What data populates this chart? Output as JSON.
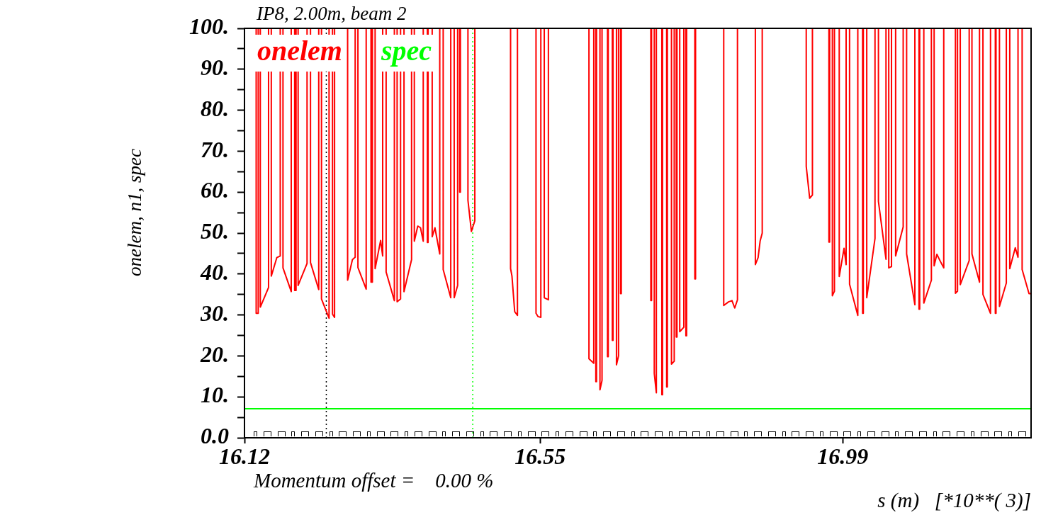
{
  "chart_data": {
    "type": "line",
    "title": "IP8, 2.00m, beam 2",
    "ylabel": "onelem, n1, spec",
    "xlabel": "s (m)   [*10**( 3)]",
    "annotations": [
      "Momentum offset =    0.00 %"
    ],
    "xlim": [
      16.12,
      17.264
    ],
    "xticks": [
      16.12,
      16.55,
      16.99
    ],
    "ylim": [
      0,
      100
    ],
    "yticks": [
      {
        "value": 0,
        "label": "0.0"
      },
      {
        "value": 5,
        "label": null
      },
      {
        "value": 10,
        "label": "10."
      },
      {
        "value": 15,
        "label": null
      },
      {
        "value": 20,
        "label": "20."
      },
      {
        "value": 25,
        "label": null
      },
      {
        "value": 30,
        "label": "30."
      },
      {
        "value": 35,
        "label": null
      },
      {
        "value": 40,
        "label": "40."
      },
      {
        "value": 45,
        "label": null
      },
      {
        "value": 50,
        "label": "50."
      },
      {
        "value": 55,
        "label": null
      },
      {
        "value": 60,
        "label": "60."
      },
      {
        "value": 65,
        "label": null
      },
      {
        "value": 70,
        "label": "70."
      },
      {
        "value": 75,
        "label": null
      },
      {
        "value": 80,
        "label": "80."
      },
      {
        "value": 85,
        "label": null
      },
      {
        "value": 90,
        "label": "90."
      },
      {
        "value": 95,
        "label": null
      },
      {
        "value": 100,
        "label": "100."
      }
    ],
    "grid": false,
    "legend": "top left",
    "marker": "none",
    "line_style": "solid",
    "ref_lines": [
      {
        "axis": "x",
        "value": 16.239,
        "color": "#000000",
        "line_style": "dotted"
      },
      {
        "axis": "x",
        "value": 16.452,
        "color": "#00ff00",
        "line_style": "dotted"
      }
    ],
    "series": [
      {
        "name": "onelem",
        "color": "#ff0000",
        "x": [
          16.137,
          16.137,
          16.14,
          16.14,
          16.143,
          16.143,
          16.155,
          16.155,
          16.159,
          16.159,
          16.167,
          16.172,
          16.172,
          16.176,
          16.176,
          16.188,
          16.188,
          16.193,
          16.193,
          16.195,
          16.195,
          16.198,
          16.198,
          16.211,
          16.211,
          16.216,
          16.216,
          16.228,
          16.228,
          16.232,
          16.232,
          16.243,
          16.243,
          16.248,
          16.248,
          16.251,
          16.251,
          16.27,
          16.27,
          16.277,
          16.281,
          16.281,
          16.285,
          16.285,
          16.297,
          16.297,
          16.304,
          16.304,
          16.306,
          16.306,
          16.31,
          16.31,
          16.318,
          16.321,
          16.321,
          16.326,
          16.326,
          16.338,
          16.338,
          16.342,
          16.342,
          16.347,
          16.347,
          16.352,
          16.352,
          16.363,
          16.363,
          16.367,
          16.367,
          16.372,
          16.376,
          16.38,
          16.38,
          16.386,
          16.386,
          16.387,
          16.387,
          16.393,
          16.393,
          16.397,
          16.404,
          16.404,
          16.409,
          16.409,
          16.42,
          16.42,
          16.425,
          16.425,
          16.43,
          16.43,
          16.433,
          16.433,
          16.434,
          16.434,
          16.445,
          16.445,
          16.45,
          16.455,
          16.455,
          16.507,
          16.507,
          16.509,
          16.513,
          16.517,
          16.517,
          16.544,
          16.544,
          16.547,
          16.551,
          16.551,
          16.556,
          16.556,
          16.562,
          16.562,
          16.621,
          16.621,
          16.628,
          16.628,
          16.631,
          16.631,
          16.632,
          16.632,
          16.637,
          16.637,
          16.64,
          16.64,
          16.648,
          16.648,
          16.649,
          16.649,
          16.655,
          16.655,
          16.656,
          16.656,
          16.661,
          16.661,
          16.664,
          16.664,
          16.667,
          16.667,
          16.668,
          16.668,
          16.711,
          16.711,
          16.712,
          16.712,
          16.716,
          16.716,
          16.719,
          16.719,
          16.727,
          16.727,
          16.728,
          16.728,
          16.734,
          16.734,
          16.735,
          16.735,
          16.741,
          16.741,
          16.745,
          16.745,
          16.748,
          16.748,
          16.749,
          16.749,
          16.753,
          16.753,
          16.759,
          16.759,
          16.762,
          16.762,
          16.763,
          16.763,
          16.775,
          16.775,
          16.776,
          16.776,
          16.817,
          16.817,
          16.824,
          16.829,
          16.833,
          16.837,
          16.837,
          16.863,
          16.863,
          16.867,
          16.87,
          16.873,
          16.873,
          16.937,
          16.937,
          16.942,
          16.946,
          16.946,
          16.97,
          16.97,
          16.971,
          16.971,
          16.975,
          16.975,
          16.978,
          16.978,
          16.985,
          16.985,
          16.992,
          16.995,
          16.995,
          17,
          17,
          17.012,
          17.012,
          17.019,
          17.019,
          17.02,
          17.02,
          17.025,
          17.025,
          17.037,
          17.037,
          17.042,
          17.042,
          17.053,
          17.053,
          17.057,
          17.057,
          17.061,
          17.061,
          17.067,
          17.067,
          17.078,
          17.078,
          17.083,
          17.083,
          17.095,
          17.095,
          17.101,
          17.101,
          17.102,
          17.102,
          17.108,
          17.108,
          17.119,
          17.119,
          17.123,
          17.123,
          17.127,
          17.132,
          17.137,
          17.137,
          17.154,
          17.154,
          17.157,
          17.157,
          17.161,
          17.161,
          17.174,
          17.174,
          17.178,
          17.178,
          17.189,
          17.189,
          17.194,
          17.194,
          17.205,
          17.205,
          17.212,
          17.212,
          17.213,
          17.213,
          17.218,
          17.218,
          17.228,
          17.228,
          17.233,
          17.233,
          17.241,
          17.245,
          17.245,
          17.251,
          17.251,
          17.261,
          17.264
        ],
        "values": [
          100,
          30.4,
          30.4,
          100,
          100,
          31.9,
          36.7,
          100,
          100,
          39.5,
          44,
          44.4,
          100,
          100,
          41.5,
          35.7,
          100,
          100,
          36,
          36,
          100,
          100,
          37.2,
          42.6,
          100,
          100,
          42.8,
          36.2,
          100,
          100,
          33.9,
          29.2,
          100,
          100,
          30.2,
          29.4,
          100,
          100,
          38.5,
          43.5,
          44.1,
          100,
          100,
          41.6,
          36.3,
          100,
          100,
          38,
          38,
          100,
          100,
          41.3,
          48.2,
          44.4,
          100,
          100,
          40.5,
          33.5,
          100,
          100,
          33.2,
          33.9,
          100,
          100,
          35.7,
          43.5,
          100,
          100,
          48,
          51.7,
          51.3,
          48,
          100,
          100,
          47.7,
          47.7,
          100,
          100,
          49.1,
          51.3,
          44.9,
          100,
          100,
          41.1,
          34.2,
          100,
          100,
          34.2,
          37.2,
          100,
          100,
          60,
          60,
          100,
          100,
          58,
          50.4,
          53,
          100,
          100,
          41.3,
          39.5,
          30.8,
          29.9,
          100,
          100,
          30.4,
          29.6,
          29.4,
          100,
          100,
          34.2,
          33.7,
          100,
          100,
          19.3,
          18.2,
          100,
          100,
          13.7,
          13.7,
          100,
          100,
          11.7,
          14,
          100,
          100,
          19.8,
          19.8,
          100,
          100,
          23.8,
          23.8,
          100,
          100,
          17.8,
          20,
          100,
          100,
          35.2,
          35.2,
          100,
          100,
          33.5,
          33.5,
          100,
          100,
          15.7,
          11,
          100,
          100,
          10.5,
          10.5,
          100,
          100,
          12.4,
          12.4,
          100,
          100,
          18,
          18.7,
          100,
          100,
          24.6,
          24.6,
          100,
          100,
          25.9,
          27,
          100,
          100,
          24.9,
          24.9,
          100,
          100,
          38.8,
          38.8,
          100,
          100,
          32.3,
          33.2,
          33.5,
          31.7,
          33.7,
          100,
          100,
          42.3,
          44,
          48.1,
          50,
          100,
          100,
          66.3,
          58.5,
          59.3,
          100,
          100,
          47.8,
          47.8,
          100,
          100,
          34.7,
          35.8,
          100,
          100,
          39.4,
          46.3,
          42.3,
          100,
          100,
          37.5,
          29.9,
          100,
          100,
          30.4,
          30.4,
          100,
          100,
          34.2,
          48.7,
          100,
          100,
          57.7,
          43.6,
          100,
          100,
          41.5,
          41.8,
          100,
          100,
          44.4,
          51.5,
          100,
          100,
          44.9,
          32.5,
          100,
          100,
          31.4,
          31.4,
          100,
          100,
          32.9,
          38.5,
          100,
          100,
          42,
          44.8,
          43.1,
          41.5,
          100,
          100,
          35.3,
          35.8,
          100,
          100,
          37.4,
          43.3,
          100,
          100,
          44.9,
          38,
          100,
          100,
          35,
          30.4,
          100,
          100,
          30.4,
          30.4,
          100,
          100,
          32.1,
          37.8,
          100,
          100,
          41.3,
          46.4,
          44.1,
          100,
          100,
          41.1,
          35.2,
          35.2
        ]
      },
      {
        "name": "spec",
        "color": "#00ff00",
        "x": [
          16.12,
          17.264
        ],
        "values": [
          7.1,
          7.1
        ]
      }
    ]
  }
}
